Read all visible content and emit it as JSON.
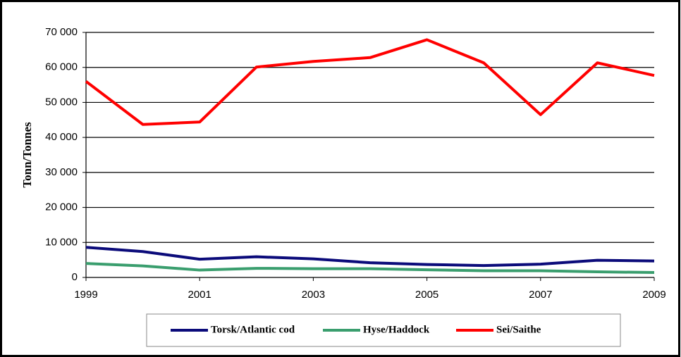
{
  "chart_data": {
    "type": "line",
    "y_label": "Tonn/Tonnes",
    "x": [
      1999,
      2000,
      2001,
      2002,
      2003,
      2004,
      2005,
      2006,
      2007,
      2008,
      2009
    ],
    "xlim": [
      1999,
      2009
    ],
    "xticks": [
      1999,
      2001,
      2003,
      2005,
      2007,
      2009
    ],
    "ylim": [
      0,
      70000
    ],
    "yticks": [
      0,
      {
        "value": 10000,
        "label": "10 000"
      },
      {
        "value": 20000,
        "label": "20 000"
      },
      {
        "value": 30000,
        "label": "30 000"
      },
      {
        "value": 40000,
        "label": "40 000"
      },
      {
        "value": 50000,
        "label": "50 000"
      },
      {
        "value": 60000,
        "label": "60 000"
      },
      {
        "value": 70000,
        "label": "70 000"
      }
    ],
    "grid": true,
    "legend": "bottom",
    "series": [
      {
        "name": "Torsk/Atlantic cod",
        "color": "#0b0b7a",
        "values": [
          8600,
          7400,
          5200,
          5900,
          5300,
          4200,
          3700,
          3400,
          3800,
          4900,
          4700
        ]
      },
      {
        "name": "Hyse/Haddock",
        "color": "#3a9e6e",
        "values": [
          4000,
          3300,
          2100,
          2600,
          2500,
          2500,
          2200,
          1900,
          1900,
          1600,
          1400
        ]
      },
      {
        "name": "Sei/Saithe",
        "color": "#ff0000",
        "values": [
          56000,
          43700,
          44400,
          60100,
          61700,
          62800,
          67900,
          61300,
          46500,
          61300,
          57700
        ]
      }
    ]
  }
}
